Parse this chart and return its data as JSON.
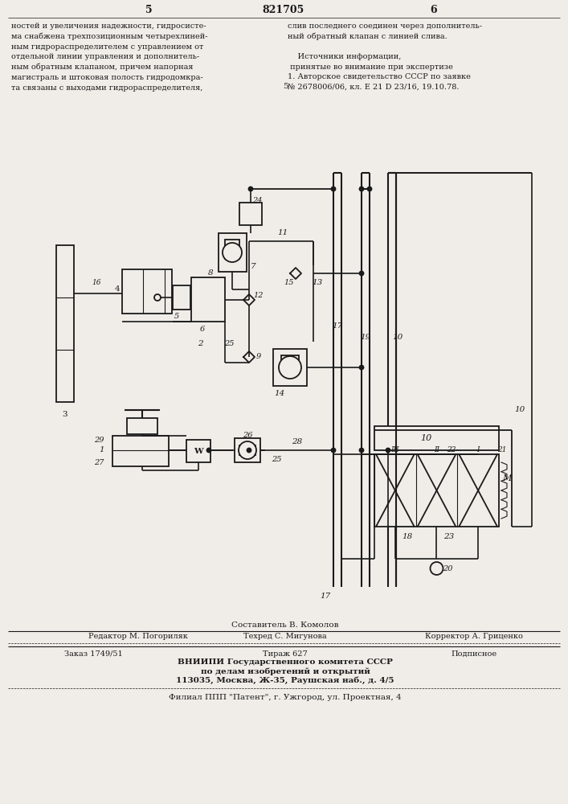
{
  "bg_color": "#f0ede8",
  "line_color": "#1a1a1a",
  "footer_editor": "Редактор М. Погориляк",
  "footer_tech": "Техред С. Мигунова",
  "footer_corr": "Корректор А. Гриценко",
  "footer_order": "Заказ 1749/51",
  "footer_circ": "Тираж 627",
  "footer_sub": "Подписное",
  "footer_org": "ВНИИПИ Государственного комитета СССР",
  "footer_org2": "по делам изобретений и открытий",
  "footer_addr": "113035, Москва, Ж-35, Раушская наб., д. 4/5",
  "footer_branch": "Филиал ППП \"Патент\", г. Ужгород, ул. Проектная, 4",
  "footer_comp": "Составитель В. Комолов"
}
